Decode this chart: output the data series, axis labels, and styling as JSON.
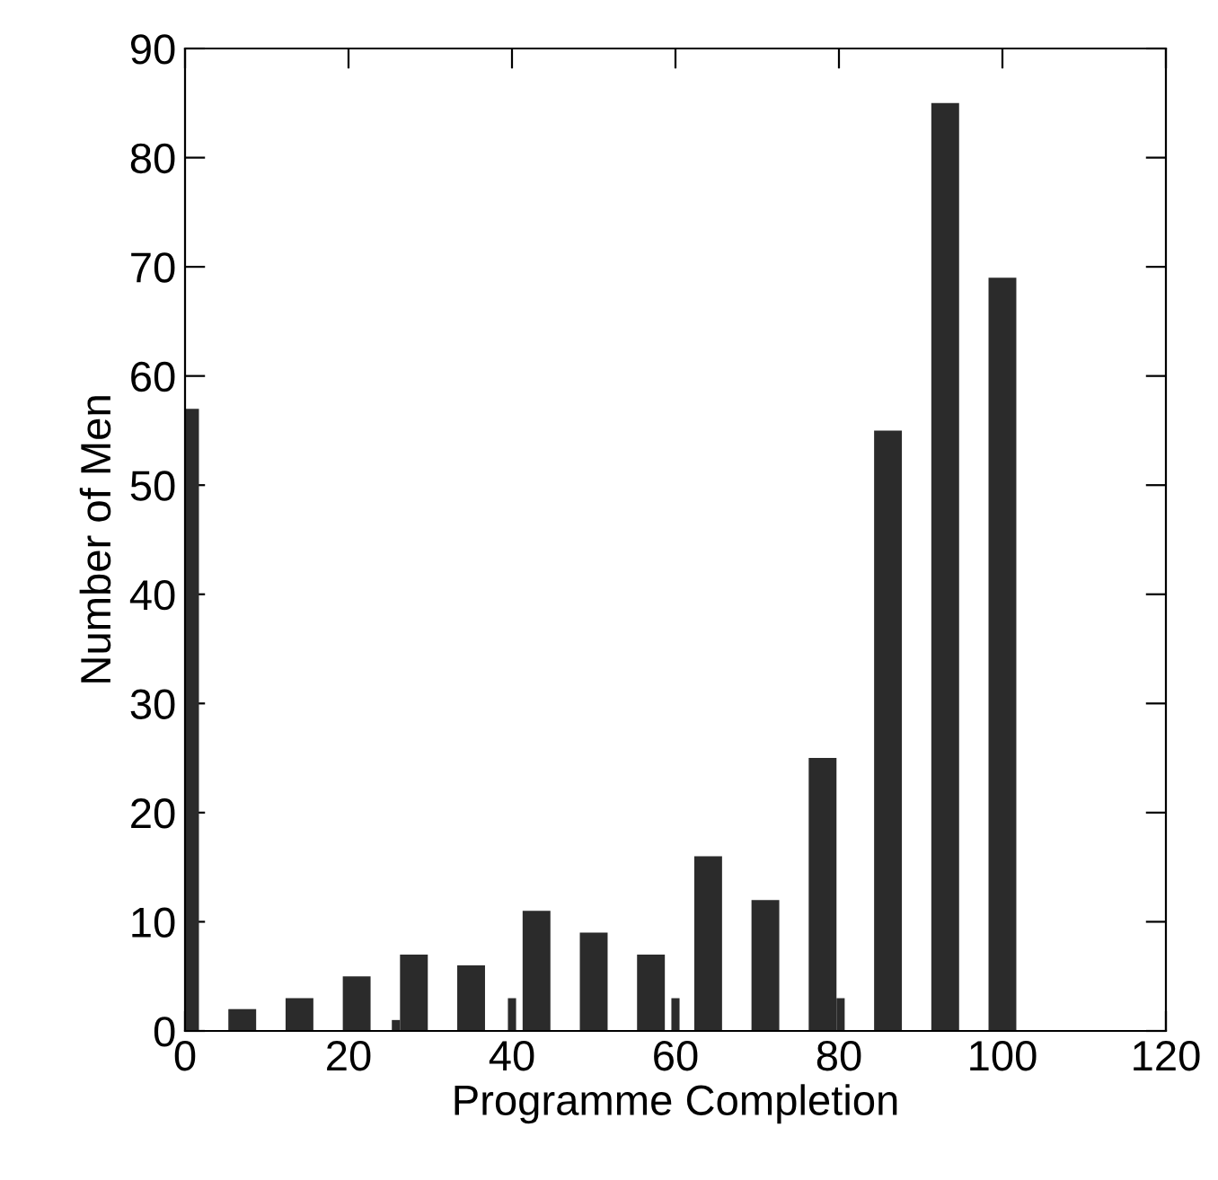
{
  "chart_data": {
    "type": "bar",
    "xlabel": "Programme Completion",
    "ylabel": "Number of Men",
    "series": [
      {
        "color": "#2b2b2b",
        "x": [
          0,
          7,
          14,
          21,
          28,
          35,
          43,
          50,
          57,
          64,
          71,
          78,
          86,
          93,
          100
        ],
        "values": [
          57,
          2,
          3,
          5,
          7,
          6,
          11,
          9,
          7,
          16,
          12,
          25,
          55,
          85,
          69
        ]
      },
      {
        "color": "#2b2b2b",
        "x": [
          25.8,
          40,
          60,
          80.2
        ],
        "values": [
          1,
          3,
          3,
          3
        ]
      }
    ],
    "xlim": [
      0,
      120
    ],
    "xticks": [
      0,
      20,
      40,
      60,
      80,
      100,
      120
    ],
    "ylim": [
      0,
      90
    ],
    "yticks": [
      0,
      10,
      20,
      30,
      40,
      50,
      60,
      70,
      80,
      90
    ],
    "grid": false,
    "legend": false
  }
}
